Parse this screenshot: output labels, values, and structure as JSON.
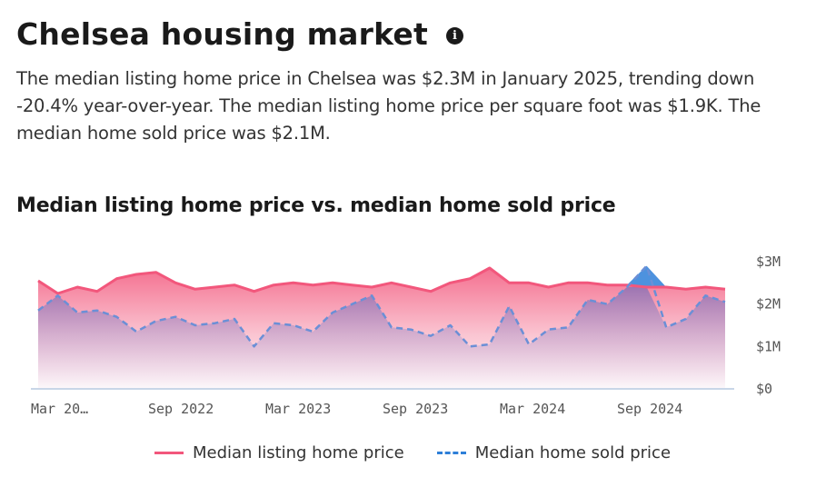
{
  "header": {
    "title": "Chelsea housing market",
    "info_icon": "info-icon",
    "summary": "The median listing home price in Chelsea was $2.3M in January 2025, trending down -20.4% year-over-year. The median listing home price per square foot was $1.9K. The median home sold price was $2.1M."
  },
  "chart_title": "Median listing home price vs. median home sold price",
  "colors": {
    "listing": "#f2577c",
    "sold": "#6b8fd6",
    "sold_above": "#2e7fd8",
    "axis": "#c8d6e8"
  },
  "chart_data": {
    "type": "area",
    "x_ticks": [
      "Mar 20…",
      "Sep 2022",
      "Mar 2023",
      "Sep 2023",
      "Mar 2024",
      "Sep 2024"
    ],
    "y_ticks": [
      "$3M",
      "$2M",
      "$1M",
      "$0"
    ],
    "ylim": [
      0,
      3000000
    ],
    "legend_position": "bottom",
    "grid": false,
    "series": [
      {
        "name": "Median listing home price",
        "style": "solid",
        "values": [
          2550000,
          2250000,
          2400000,
          2300000,
          2600000,
          2700000,
          2750000,
          2500000,
          2350000,
          2400000,
          2450000,
          2300000,
          2450000,
          2500000,
          2450000,
          2500000,
          2450000,
          2400000,
          2500000,
          2400000,
          2300000,
          2500000,
          2600000,
          2850000,
          2500000,
          2500000,
          2400000,
          2500000,
          2500000,
          2450000,
          2450000,
          2400000,
          2400000,
          2350000,
          2400000,
          2350000
        ]
      },
      {
        "name": "Median home sold price",
        "style": "dashed",
        "values": [
          1850000,
          2200000,
          1800000,
          1850000,
          1700000,
          1350000,
          1600000,
          1700000,
          1500000,
          1550000,
          1650000,
          1000000,
          1550000,
          1500000,
          1350000,
          1800000,
          2000000,
          2200000,
          1450000,
          1400000,
          1250000,
          1500000,
          1000000,
          1050000,
          1950000,
          1050000,
          1400000,
          1450000,
          2100000,
          2000000,
          2400000,
          2900000,
          1450000,
          1650000,
          2200000,
          2050000
        ]
      }
    ]
  }
}
